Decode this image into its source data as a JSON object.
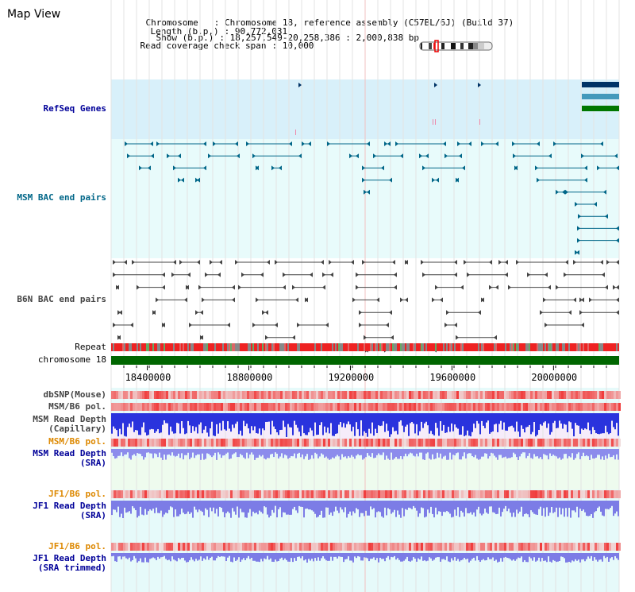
{
  "title": "Map View",
  "info": {
    "chromosome_key": "Chromosome",
    "chromosome_value": ": Chromosome 18, reference assembly (C57BL/6J) (Build 37)",
    "length_key": "Length (b.p.)",
    "length_value": ": 90,772,031",
    "show_key": "Show (b.p.)",
    "show_value": ": 18,257,549-20,258,386 : 2,000,838 bp",
    "span_key": "Read coverage check span",
    "span_value": ": 10,000"
  },
  "tracks": {
    "refseq": "RefSeq Genes",
    "msm_bac": "MSM BAC end pairs",
    "b6n_bac": "B6N BAC end pairs",
    "repeat": "Repeat",
    "chrom": "chromosome 18",
    "dbsnp": "dbSNP(Mouse)",
    "msm_pol1": "MSM/B6 pol.",
    "msm_depth_cap_1": "MSM Read Depth",
    "msm_depth_cap_2": "(Capillary)",
    "msm_pol2": "MSM/B6 pol.",
    "msm_depth_sra_1": "MSM Read Depth",
    "msm_depth_sra_2": "(SRA)",
    "jf1_pol1": "JF1/B6 pol.",
    "jf1_depth_sra_1": "JF1 Read Depth",
    "jf1_depth_sra_2": "(SRA)",
    "jf1_pol2": "JF1/B6 pol.",
    "jf1_depth_trim_1": "JF1 Read Depth",
    "jf1_depth_trim_2": "(SRA trimmed)"
  },
  "axis": {
    "ticks": [
      {
        "pos": 18400000,
        "label": "18400000"
      },
      {
        "pos": 18800000,
        "label": "18800000"
      },
      {
        "pos": 19200000,
        "label": "19200000"
      },
      {
        "pos": 19600000,
        "label": "19600000"
      },
      {
        "pos": 20000000,
        "label": "20000000"
      }
    ],
    "start": 18257549,
    "end": 20258386
  },
  "colors": {
    "label_red": "#000000",
    "label_navy": "#000099",
    "label_teal": "#006688",
    "label_gray": "#444444",
    "label_orange": "#dd8800",
    "refseq_bg": "#d8f0fa",
    "track_bg": "#e8fbfb",
    "chrom_green": "#006600"
  }
}
